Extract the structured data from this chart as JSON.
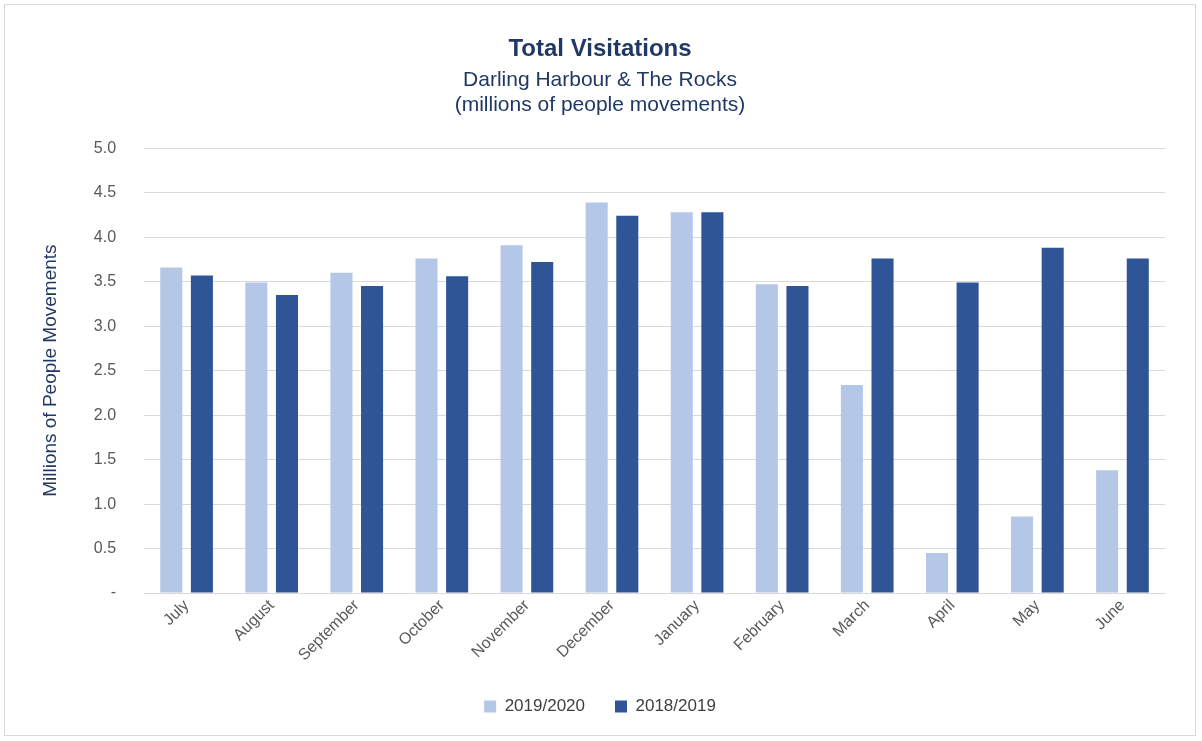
{
  "chart_data": {
    "type": "bar",
    "title": "Total Visitations",
    "subtitle": "Darling Harbour & The Rocks\n(millions of people movements)",
    "ylabel": "Millions of People Movements",
    "categories": [
      "July",
      "August",
      "September",
      "October",
      "November",
      "December",
      "January",
      "February",
      "March",
      "April",
      "May",
      "June"
    ],
    "series": [
      {
        "name": "2019/2020",
        "color": "#b4c7e7",
        "values": [
          3.66,
          3.49,
          3.6,
          3.76,
          3.91,
          4.39,
          4.28,
          3.47,
          2.34,
          0.45,
          0.86,
          1.38
        ]
      },
      {
        "name": "2018/2019",
        "color": "#2f5597",
        "values": [
          3.57,
          3.35,
          3.45,
          3.56,
          3.72,
          4.24,
          4.28,
          3.45,
          3.76,
          3.49,
          3.88,
          3.76
        ]
      }
    ],
    "ylim": [
      0,
      5
    ],
    "yticks": [
      {
        "value": 0,
        "label": "-"
      },
      {
        "value": 0.5,
        "label": "0.5"
      },
      {
        "value": 1,
        "label": "1.0"
      },
      {
        "value": 1.5,
        "label": "1.5"
      },
      {
        "value": 2,
        "label": "2.0"
      },
      {
        "value": 2.5,
        "label": "2.5"
      },
      {
        "value": 3,
        "label": "3.0"
      },
      {
        "value": 3.5,
        "label": "3.5"
      },
      {
        "value": 4,
        "label": "4.0"
      },
      {
        "value": 4.5,
        "label": "4.5"
      },
      {
        "value": 5,
        "label": "5.0"
      }
    ],
    "grid": "y",
    "legend": "bottom"
  }
}
